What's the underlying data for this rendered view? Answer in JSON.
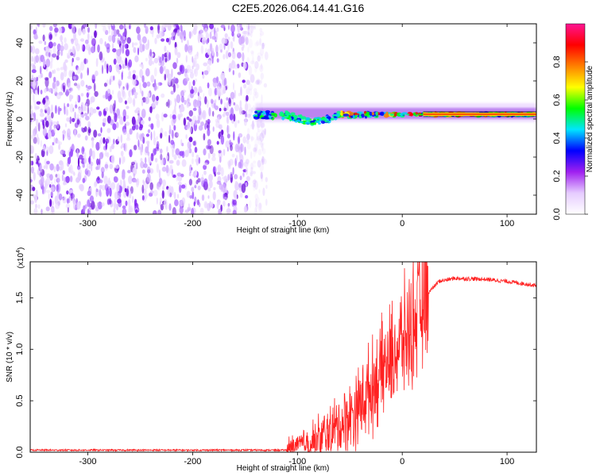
{
  "title": "C2E5.2026.064.14.41.G16",
  "chart_data": [
    {
      "type": "heatmap",
      "xlabel": "Height of straight line (km)",
      "ylabel": "Frequency (Hz)",
      "xlim": [
        -355,
        128
      ],
      "ylim": [
        -50,
        50
      ],
      "xticks": [
        -300,
        -200,
        -100,
        0,
        100
      ],
      "yticks": [
        -40,
        -20,
        0,
        20,
        40
      ],
      "colorbar": {
        "label": "Normalized spectral amplitude",
        "range": [
          0,
          1
        ],
        "ticks": [
          "0.0",
          "0.2",
          "0.4",
          "0.6",
          "0.8"
        ],
        "colors": [
          "#ffffff",
          "#e6ccff",
          "#a020f0",
          "#0000ff",
          "#00e5ff",
          "#00ff00",
          "#ffff00",
          "#ff8000",
          "#ff0000",
          "#ff1493"
        ]
      },
      "description_regions": {
        "noise_region_km": [
          -355,
          -140
        ],
        "signal_ridge_km": [
          -140,
          128
        ],
        "signal_frequency_hz": [
          0,
          5
        ]
      }
    },
    {
      "type": "line",
      "xlabel": "Height of straight line (km)",
      "ylabel": "SNR (10 * v/v)",
      "scale_label": "(x10",
      "scale_exponent": "4",
      "scale_close": ")",
      "xlim": [
        -355,
        128
      ],
      "ylim": [
        0,
        1.85
      ],
      "xticks": [
        -300,
        -200,
        -100,
        0,
        100
      ],
      "yticks": [
        "0.0",
        "0.5",
        "1.0",
        "1.5"
      ],
      "color": "#ff2020",
      "series_profile": {
        "x": [
          -355,
          -110,
          -100,
          -80,
          -60,
          -45,
          -35,
          -25,
          -15,
          -5,
          5,
          15,
          25,
          35,
          50,
          80,
          100,
          128
        ],
        "y": [
          0.02,
          0.02,
          0.05,
          0.12,
          0.25,
          0.4,
          0.55,
          0.7,
          0.85,
          1.0,
          1.15,
          1.35,
          1.55,
          1.66,
          1.69,
          1.68,
          1.66,
          1.62
        ]
      }
    }
  ]
}
